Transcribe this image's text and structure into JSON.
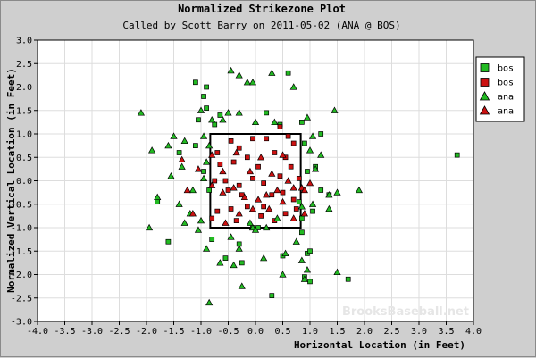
{
  "chart_data": {
    "type": "scatter",
    "title": "Normalized Strikezone Plot",
    "subtitle": "Called by Scott Barry on 2011-05-02 (ANA @ BOS)",
    "xlabel": "Horizontal Location (in Feet)",
    "ylabel": "Normalized Vertical Location (in Feet)",
    "xlim": [
      -4.0,
      4.0
    ],
    "ylim": [
      -3.0,
      3.0
    ],
    "xticks": [
      "-4.0",
      "-3.5",
      "-3.0",
      "-2.5",
      "-2.0",
      "-1.5",
      "-1.0",
      "-0.5",
      "0.0",
      "0.5",
      "1.0",
      "1.5",
      "2.0",
      "2.5",
      "3.0",
      "3.5",
      "4.0"
    ],
    "yticks": [
      "3.0",
      "2.5",
      "2.0",
      "1.5",
      "1.0",
      "0.5",
      "0.0",
      "-0.5",
      "-1.0",
      "-1.5",
      "-2.0",
      "-2.5",
      "-3.0"
    ],
    "grid": true,
    "legend_position": "top-right",
    "strike_zone": {
      "x": [
        -0.83,
        0.83
      ],
      "y": [
        -1.0,
        1.0
      ]
    },
    "watermark": "BrooksBaseball.net",
    "colors": {
      "ball": "#22bb22",
      "strike": "#cc1111",
      "zone": "#000000",
      "grid": "#dddddd",
      "plot_bg": "#ffffff",
      "page_bg": "#cfcfcf"
    },
    "series": [
      {
        "name": "bos",
        "marker": "square",
        "color": "#22bb22",
        "points": [
          [
            -1.1,
            2.1
          ],
          [
            -0.9,
            2.0
          ],
          [
            -0.95,
            1.8
          ],
          [
            -0.9,
            1.55
          ],
          [
            -0.65,
            1.4
          ],
          [
            -1.05,
            1.3
          ],
          [
            -0.75,
            1.2
          ],
          [
            -1.4,
            0.6
          ],
          [
            -1.1,
            0.75
          ],
          [
            -0.95,
            0.2
          ],
          [
            -0.85,
            -0.2
          ],
          [
            -0.8,
            -1.25
          ],
          [
            -1.6,
            -1.3
          ],
          [
            0.2,
            1.45
          ],
          [
            0.45,
            1.2
          ],
          [
            0.85,
            1.25
          ],
          [
            0.6,
            2.3
          ],
          [
            0.9,
            0.8
          ],
          [
            0.95,
            0.2
          ],
          [
            1.1,
            0.3
          ],
          [
            1.2,
            -0.2
          ],
          [
            1.35,
            -0.3
          ],
          [
            1.05,
            -0.65
          ],
          [
            0.85,
            -0.8
          ],
          [
            0.85,
            -1.1
          ],
          [
            0.95,
            -1.55
          ],
          [
            0.9,
            -2.05
          ],
          [
            1.0,
            -2.15
          ],
          [
            1.0,
            -1.5
          ],
          [
            1.2,
            1.0
          ],
          [
            1.7,
            -2.1
          ],
          [
            3.7,
            0.55
          ],
          [
            0.05,
            -1.0
          ],
          [
            -0.05,
            -1.0
          ],
          [
            -0.3,
            -1.35
          ],
          [
            0.5,
            -1.6
          ],
          [
            0.3,
            -2.45
          ],
          [
            -0.25,
            -1.75
          ],
          [
            -0.55,
            -1.65
          ],
          [
            -1.8,
            -0.45
          ],
          [
            0.8,
            -0.45
          ]
        ]
      },
      {
        "name": "bos",
        "marker": "square",
        "color": "#cc1111",
        "points": [
          [
            -0.7,
            0.6
          ],
          [
            -0.45,
            0.85
          ],
          [
            -0.3,
            0.7
          ],
          [
            -0.05,
            0.9
          ],
          [
            0.2,
            0.9
          ],
          [
            0.45,
            1.15
          ],
          [
            0.55,
            0.5
          ],
          [
            0.65,
            0.3
          ],
          [
            0.45,
            0.1
          ],
          [
            0.05,
            0.3
          ],
          [
            -0.15,
            0.5
          ],
          [
            -0.4,
            0.4
          ],
          [
            -0.65,
            0.35
          ],
          [
            -0.75,
            0.0
          ],
          [
            -0.5,
            -0.2
          ],
          [
            -0.25,
            -0.3
          ],
          [
            0.15,
            -0.05
          ],
          [
            0.3,
            -0.3
          ],
          [
            0.5,
            -0.25
          ],
          [
            0.7,
            -0.4
          ],
          [
            0.75,
            -0.6
          ],
          [
            0.55,
            -0.7
          ],
          [
            0.35,
            -0.85
          ],
          [
            0.1,
            -0.75
          ],
          [
            -0.15,
            -0.55
          ],
          [
            -0.45,
            -0.6
          ],
          [
            -0.7,
            -0.65
          ],
          [
            -0.8,
            -0.8
          ],
          [
            -0.35,
            -0.85
          ],
          [
            0.15,
            -0.55
          ],
          [
            0.8,
            0.05
          ],
          [
            0.7,
            0.8
          ],
          [
            -0.05,
            0.05
          ],
          [
            -0.55,
            0.0
          ],
          [
            0.35,
            0.6
          ],
          [
            0.6,
            0.95
          ],
          [
            -0.3,
            -0.1
          ]
        ]
      },
      {
        "name": "ana",
        "marker": "triangle",
        "color": "#22bb22",
        "points": [
          [
            -0.45,
            2.35
          ],
          [
            -0.3,
            2.25
          ],
          [
            -0.15,
            2.1
          ],
          [
            -0.05,
            2.1
          ],
          [
            0.3,
            2.3
          ],
          [
            0.7,
            2.0
          ],
          [
            -2.1,
            1.45
          ],
          [
            -1.0,
            1.5
          ],
          [
            -0.8,
            1.3
          ],
          [
            -0.6,
            1.3
          ],
          [
            -0.5,
            1.45
          ],
          [
            -0.3,
            1.45
          ],
          [
            0.0,
            1.25
          ],
          [
            0.35,
            1.25
          ],
          [
            0.95,
            1.35
          ],
          [
            1.45,
            1.5
          ],
          [
            -1.9,
            0.65
          ],
          [
            -1.6,
            0.75
          ],
          [
            -1.5,
            0.95
          ],
          [
            -1.3,
            0.85
          ],
          [
            -0.95,
            0.95
          ],
          [
            -0.85,
            0.75
          ],
          [
            -0.9,
            0.4
          ],
          [
            -1.35,
            0.3
          ],
          [
            -1.55,
            0.1
          ],
          [
            -1.8,
            -0.35
          ],
          [
            -1.15,
            -0.2
          ],
          [
            -1.4,
            -0.5
          ],
          [
            -1.2,
            -0.7
          ],
          [
            -1.95,
            -1.0
          ],
          [
            -1.3,
            -0.9
          ],
          [
            -1.0,
            -0.85
          ],
          [
            -1.05,
            -1.05
          ],
          [
            -0.9,
            -1.45
          ],
          [
            -0.65,
            -1.75
          ],
          [
            -0.3,
            -1.45
          ],
          [
            -0.4,
            -1.8
          ],
          [
            -0.25,
            -2.25
          ],
          [
            -0.05,
            -1.0
          ],
          [
            0.0,
            -1.05
          ],
          [
            0.2,
            -1.0
          ],
          [
            0.55,
            -1.55
          ],
          [
            0.5,
            -2.0
          ],
          [
            0.85,
            -1.7
          ],
          [
            0.95,
            -1.9
          ],
          [
            0.9,
            -2.1
          ],
          [
            1.5,
            -1.95
          ],
          [
            0.15,
            -1.65
          ],
          [
            1.05,
            0.95
          ],
          [
            1.2,
            0.55
          ],
          [
            1.1,
            0.25
          ],
          [
            1.35,
            -0.3
          ],
          [
            1.5,
            -0.25
          ],
          [
            1.9,
            -0.2
          ],
          [
            1.35,
            -0.6
          ],
          [
            0.85,
            -0.55
          ],
          [
            1.05,
            -0.5
          ],
          [
            -0.85,
            -2.6
          ],
          [
            0.75,
            -1.3
          ],
          [
            0.4,
            -0.8
          ],
          [
            -0.1,
            -0.9
          ],
          [
            -0.95,
            0.05
          ],
          [
            1.0,
            0.65
          ],
          [
            -0.45,
            -1.2
          ]
        ]
      },
      {
        "name": "ana",
        "marker": "triangle",
        "color": "#cc1111",
        "points": [
          [
            -0.8,
            0.55
          ],
          [
            -0.6,
            0.2
          ],
          [
            -0.35,
            0.6
          ],
          [
            -0.1,
            0.2
          ],
          [
            0.1,
            0.5
          ],
          [
            0.3,
            0.15
          ],
          [
            0.5,
            0.55
          ],
          [
            0.6,
            0.0
          ],
          [
            0.4,
            -0.2
          ],
          [
            0.2,
            -0.3
          ],
          [
            0.05,
            -0.4
          ],
          [
            -0.2,
            -0.35
          ],
          [
            -0.4,
            -0.15
          ],
          [
            -0.6,
            -0.25
          ],
          [
            -0.8,
            -0.1
          ],
          [
            -0.55,
            -0.9
          ],
          [
            -0.3,
            -0.7
          ],
          [
            -0.05,
            -0.6
          ],
          [
            0.25,
            -0.6
          ],
          [
            0.5,
            -0.45
          ],
          [
            0.7,
            -0.15
          ],
          [
            0.85,
            -0.15
          ],
          [
            0.9,
            -0.2
          ],
          [
            1.0,
            -0.05
          ],
          [
            -1.35,
            0.45
          ],
          [
            -1.25,
            -0.2
          ],
          [
            -1.15,
            -0.7
          ],
          [
            -1.05,
            0.25
          ],
          [
            0.7,
            -0.8
          ],
          [
            0.9,
            -0.7
          ]
        ]
      }
    ]
  }
}
